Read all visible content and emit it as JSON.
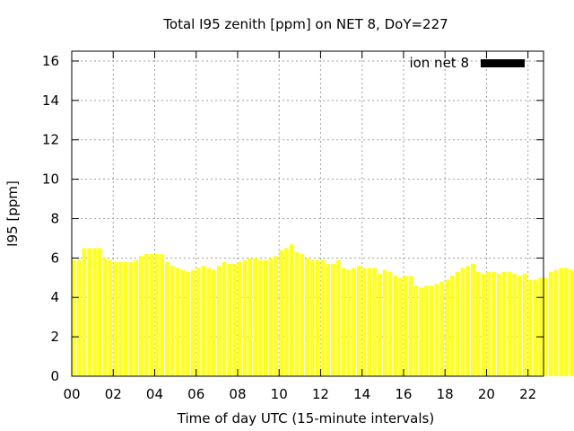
{
  "chart_data": {
    "type": "bar",
    "title": "Total I95 zenith [ppm] on NET 8, DoY=227",
    "xlabel": "Time of day UTC (15-minute intervals)",
    "ylabel": "I95 [ppm]",
    "xlim": [
      0,
      22.75
    ],
    "ylim": [
      0,
      16.5
    ],
    "xticks": [
      "00",
      "02",
      "04",
      "06",
      "08",
      "10",
      "12",
      "14",
      "16",
      "18",
      "20",
      "22"
    ],
    "yticks": [
      "0",
      "2",
      "4",
      "6",
      "8",
      "10",
      "12",
      "14",
      "16"
    ],
    "grid": true,
    "legend": {
      "label": "ion net 8",
      "placement": "top-right",
      "color": "#000000"
    },
    "bar_color": "#ffff20",
    "interval_hours": 0.25,
    "values": [
      5.9,
      5.9,
      6.5,
      6.5,
      6.5,
      6.5,
      6.0,
      5.9,
      5.8,
      5.8,
      5.8,
      5.8,
      5.9,
      6.1,
      6.2,
      6.2,
      6.2,
      6.2,
      5.8,
      5.6,
      5.5,
      5.4,
      5.3,
      5.4,
      5.5,
      5.6,
      5.5,
      5.4,
      5.6,
      5.8,
      5.7,
      5.7,
      5.8,
      5.9,
      6.0,
      6.0,
      5.9,
      5.9,
      6.0,
      6.1,
      6.4,
      6.5,
      6.7,
      6.3,
      6.2,
      6.0,
      5.9,
      5.9,
      5.9,
      5.7,
      5.7,
      5.9,
      5.5,
      5.4,
      5.5,
      5.6,
      5.5,
      5.5,
      5.5,
      5.2,
      5.4,
      5.3,
      5.1,
      5.0,
      5.1,
      5.1,
      4.6,
      4.5,
      4.6,
      4.6,
      4.7,
      4.8,
      4.9,
      5.1,
      5.3,
      5.5,
      5.6,
      5.7,
      5.3,
      5.2,
      5.3,
      5.3,
      5.2,
      5.3,
      5.3,
      5.2,
      5.1,
      5.2,
      4.9,
      4.9,
      5.0,
      5.0,
      5.3,
      5.4,
      5.5,
      5.5,
      5.4,
      5.3,
      5.1,
      5.0,
      4.9
    ]
  }
}
